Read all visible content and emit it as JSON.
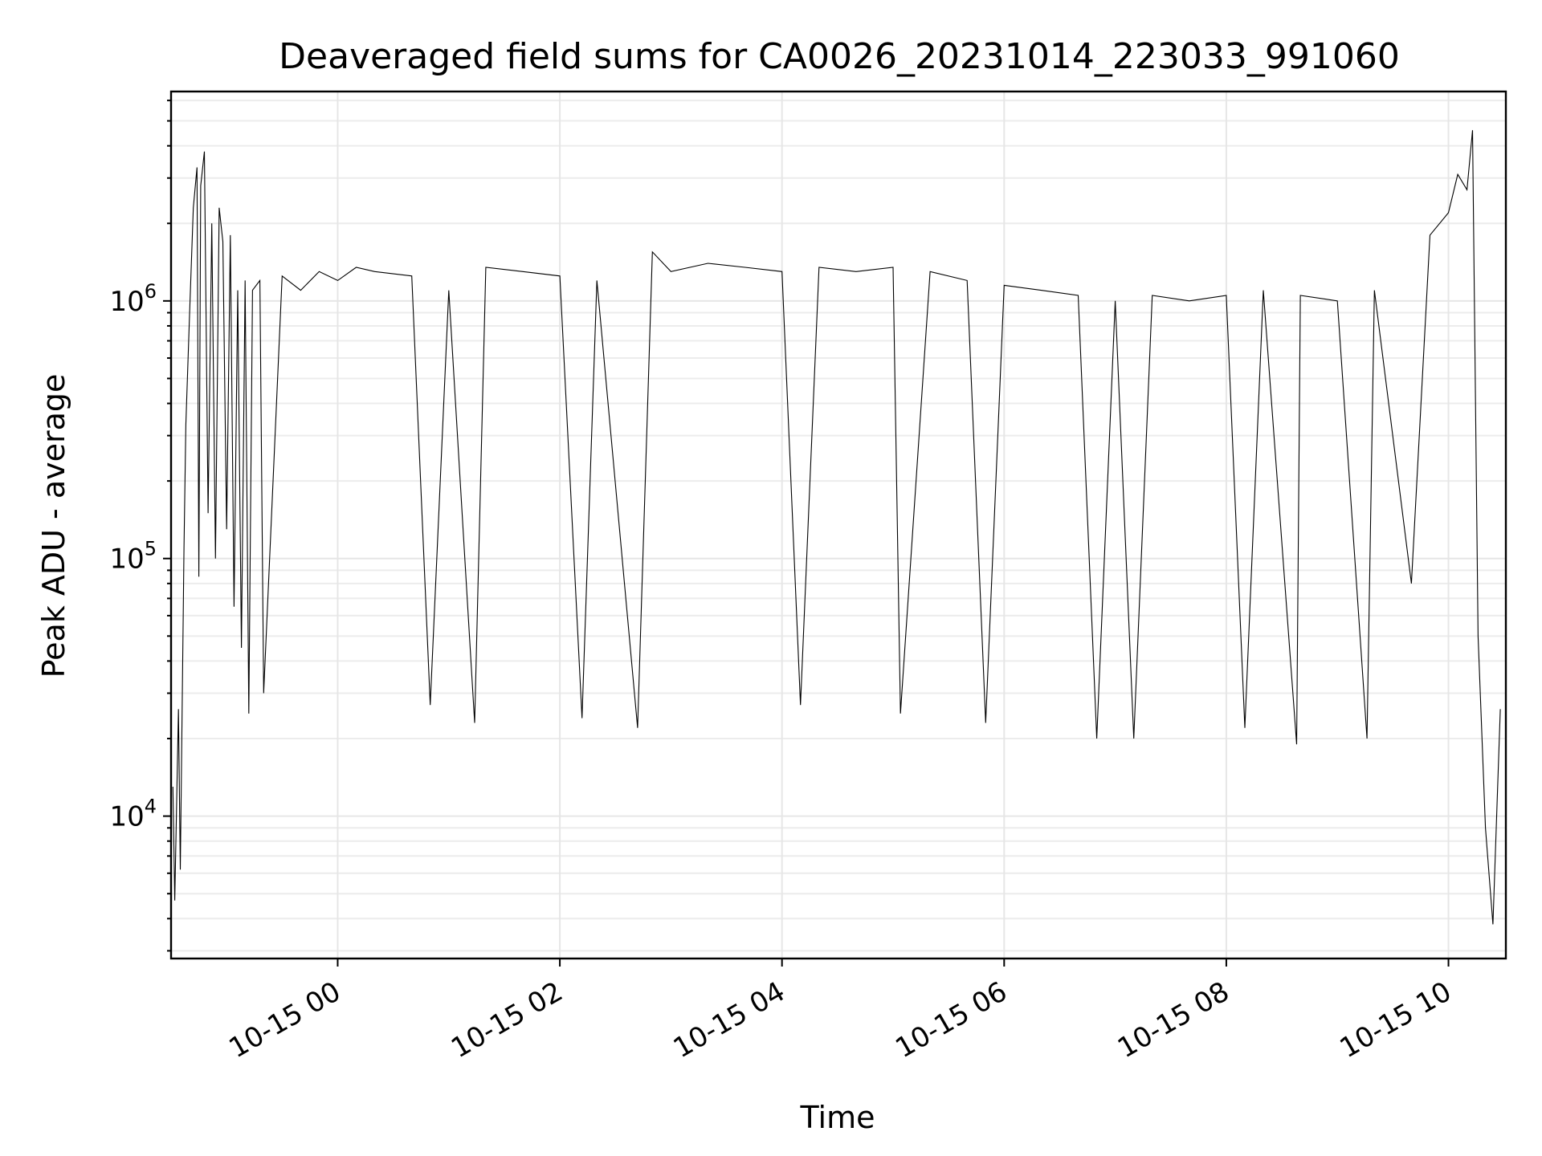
{
  "chart_data": {
    "type": "line",
    "title": "Deaveraged field sums for CA0026_20231014_223033_991060",
    "xlabel": "Time",
    "ylabel": "Peak ADU - average",
    "yscale": "log",
    "xlim": [
      "2023-10-14 22:30",
      "2023-10-15 10:31"
    ],
    "ylim": [
      2800,
      6500000
    ],
    "x_ticks": [
      "10-15 00",
      "10-15 02",
      "10-15 04",
      "10-15 06",
      "10-15 08",
      "10-15 10"
    ],
    "y_ticks": [
      {
        "base": "10",
        "exp": "4"
      },
      {
        "base": "10",
        "exp": "5"
      },
      {
        "base": "10",
        "exp": "6"
      }
    ],
    "grid": true,
    "line_color": "#000000",
    "series": [
      {
        "points": [
          [
            "2023-10-14 22:31",
            13000
          ],
          [
            "2023-10-14 22:32",
            4700
          ],
          [
            "2023-10-14 22:34",
            26000
          ],
          [
            "2023-10-14 22:35",
            6200
          ],
          [
            "2023-10-14 22:37",
            110000
          ],
          [
            "2023-10-14 22:38",
            330000
          ],
          [
            "2023-10-14 22:40",
            900000
          ],
          [
            "2023-10-14 22:42",
            2300000
          ],
          [
            "2023-10-14 22:44",
            3300000
          ],
          [
            "2023-10-14 22:45",
            85000
          ],
          [
            "2023-10-14 22:46",
            2800000
          ],
          [
            "2023-10-14 22:48",
            3800000
          ],
          [
            "2023-10-14 22:50",
            150000
          ],
          [
            "2023-10-14 22:52",
            2000000
          ],
          [
            "2023-10-14 22:54",
            100000
          ],
          [
            "2023-10-14 22:56",
            2300000
          ],
          [
            "2023-10-14 22:58",
            1700000
          ],
          [
            "2023-10-14 23:00",
            130000
          ],
          [
            "2023-10-14 23:02",
            1800000
          ],
          [
            "2023-10-14 23:04",
            65000
          ],
          [
            "2023-10-14 23:06",
            1100000
          ],
          [
            "2023-10-14 23:08",
            45000
          ],
          [
            "2023-10-14 23:10",
            1200000
          ],
          [
            "2023-10-14 23:12",
            25000
          ],
          [
            "2023-10-14 23:14",
            1100000
          ],
          [
            "2023-10-14 23:18",
            1200000
          ],
          [
            "2023-10-14 23:20",
            30000
          ],
          [
            "2023-10-14 23:30",
            1250000
          ],
          [
            "2023-10-14 23:40",
            1100000
          ],
          [
            "2023-10-14 23:50",
            1300000
          ],
          [
            "2023-10-15 00:00",
            1200000
          ],
          [
            "2023-10-15 00:10",
            1350000
          ],
          [
            "2023-10-15 00:20",
            1300000
          ],
          [
            "2023-10-15 00:40",
            1250000
          ],
          [
            "2023-10-15 00:50",
            27000
          ],
          [
            "2023-10-15 01:00",
            1100000
          ],
          [
            "2023-10-15 01:14",
            23000
          ],
          [
            "2023-10-15 01:20",
            1350000
          ],
          [
            "2023-10-15 01:40",
            1300000
          ],
          [
            "2023-10-15 02:00",
            1250000
          ],
          [
            "2023-10-15 02:12",
            24000
          ],
          [
            "2023-10-15 02:20",
            1200000
          ],
          [
            "2023-10-15 02:42",
            22000
          ],
          [
            "2023-10-15 02:50",
            1550000
          ],
          [
            "2023-10-15 03:00",
            1300000
          ],
          [
            "2023-10-15 03:20",
            1400000
          ],
          [
            "2023-10-15 03:40",
            1350000
          ],
          [
            "2023-10-15 04:00",
            1300000
          ],
          [
            "2023-10-15 04:10",
            27000
          ],
          [
            "2023-10-15 04:20",
            1350000
          ],
          [
            "2023-10-15 04:40",
            1300000
          ],
          [
            "2023-10-15 05:00",
            1350000
          ],
          [
            "2023-10-15 05:04",
            25000
          ],
          [
            "2023-10-15 05:20",
            1300000
          ],
          [
            "2023-10-15 05:40",
            1200000
          ],
          [
            "2023-10-15 05:50",
            23000
          ],
          [
            "2023-10-15 06:00",
            1150000
          ],
          [
            "2023-10-15 06:20",
            1100000
          ],
          [
            "2023-10-15 06:40",
            1050000
          ],
          [
            "2023-10-15 06:50",
            20000
          ],
          [
            "2023-10-15 07:00",
            1000000
          ],
          [
            "2023-10-15 07:10",
            20000
          ],
          [
            "2023-10-15 07:20",
            1050000
          ],
          [
            "2023-10-15 07:40",
            1000000
          ],
          [
            "2023-10-15 08:00",
            1050000
          ],
          [
            "2023-10-15 08:10",
            22000
          ],
          [
            "2023-10-15 08:20",
            1100000
          ],
          [
            "2023-10-15 08:38",
            19000
          ],
          [
            "2023-10-15 08:40",
            1050000
          ],
          [
            "2023-10-15 09:00",
            1000000
          ],
          [
            "2023-10-15 09:16",
            20000
          ],
          [
            "2023-10-15 09:20",
            1100000
          ],
          [
            "2023-10-15 09:40",
            80000
          ],
          [
            "2023-10-15 09:50",
            1800000
          ],
          [
            "2023-10-15 10:00",
            2200000
          ],
          [
            "2023-10-15 10:05",
            3100000
          ],
          [
            "2023-10-15 10:10",
            2700000
          ],
          [
            "2023-10-15 10:13",
            4600000
          ],
          [
            "2023-10-15 10:16",
            50000
          ],
          [
            "2023-10-15 10:20",
            9000
          ],
          [
            "2023-10-15 10:24",
            3800
          ],
          [
            "2023-10-15 10:28",
            26000
          ]
        ]
      }
    ]
  }
}
